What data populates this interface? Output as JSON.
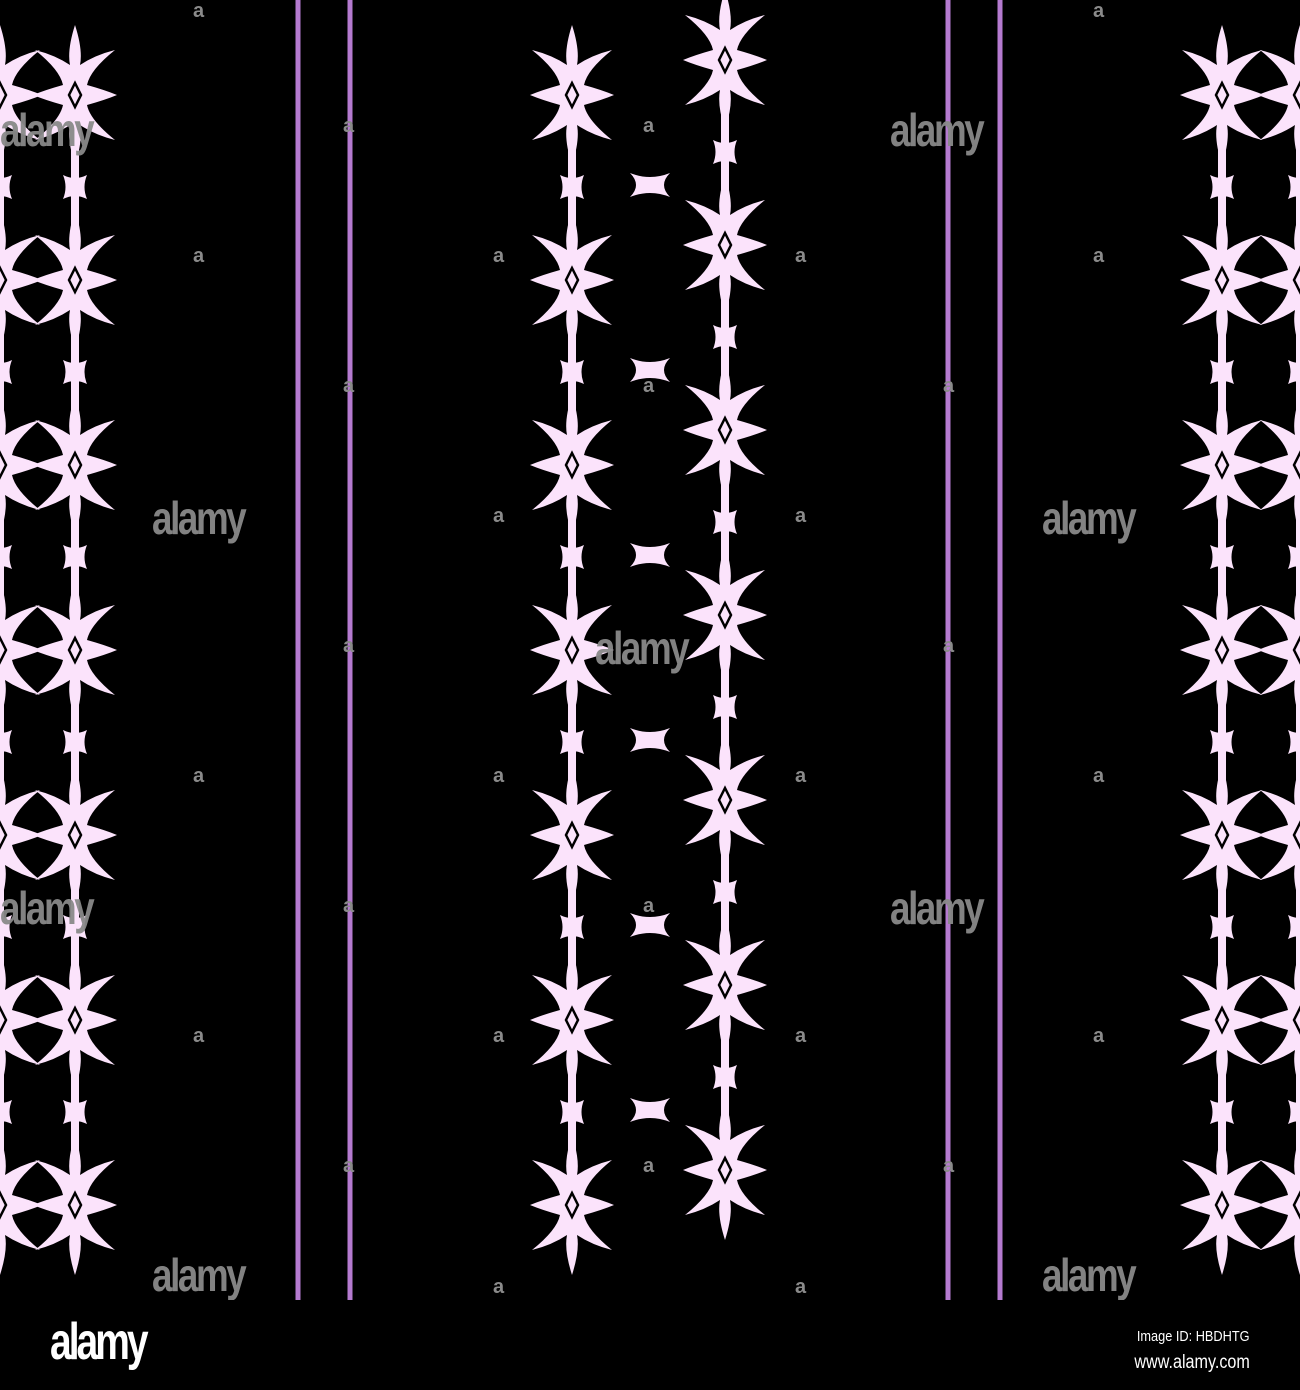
{
  "colors": {
    "background": "#000000",
    "motif": "#fbe3fb",
    "stripe": "#b57ad0",
    "watermark": "#8a8a8a"
  },
  "watermark": {
    "text": "alamy",
    "small_mark": "a"
  },
  "footer": {
    "logo": "alamy",
    "image_id": "Image ID: HBDHTG",
    "website": "www.alamy.com"
  }
}
